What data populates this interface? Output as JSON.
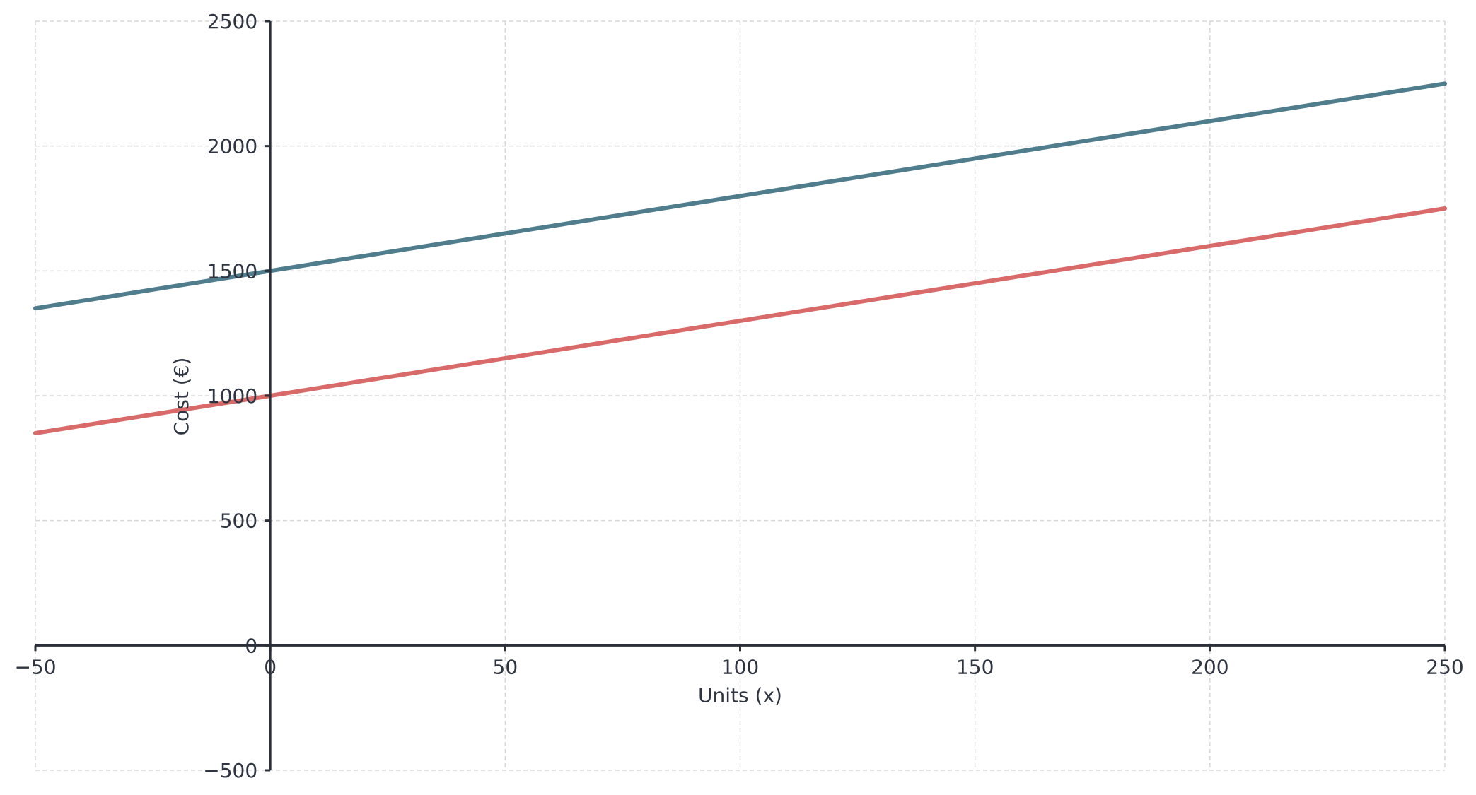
{
  "chart_data": {
    "type": "line",
    "title": "",
    "xlabel": "Units (x)",
    "ylabel": "Cost (€)",
    "xlim": [
      -50,
      250
    ],
    "ylim": [
      -500,
      2500
    ],
    "x_ticks": [
      -50,
      0,
      50,
      100,
      150,
      200,
      250
    ],
    "y_ticks": [
      -500,
      0,
      500,
      1000,
      1500,
      2000,
      2500
    ],
    "x_tick_labels": [
      "−50",
      "0",
      "50",
      "100",
      "150",
      "200",
      "250"
    ],
    "y_tick_labels": [
      "−500",
      "0",
      "500",
      "1000",
      "1500",
      "2000",
      "2500"
    ],
    "grid": true,
    "series": [
      {
        "color": "#507d8c",
        "x": [
          -50,
          250
        ],
        "y": [
          1350,
          2250
        ]
      },
      {
        "color": "#d96a6a",
        "x": [
          -50,
          250
        ],
        "y": [
          850,
          1750
        ]
      }
    ]
  }
}
